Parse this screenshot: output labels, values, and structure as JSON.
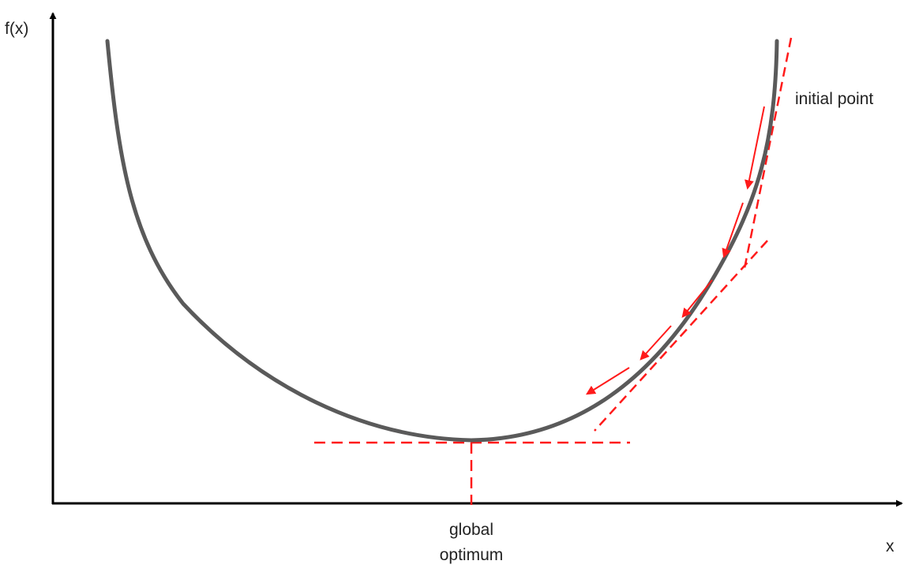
{
  "labels": {
    "y_axis": "f(x)",
    "x_axis": "x",
    "optimum_line1": "global",
    "optimum_line2": "optimum",
    "start": "initial point"
  },
  "colors": {
    "axis": "#000000",
    "curve": "#5a5a5a",
    "accent": "#ff1a1a",
    "text": "#222222"
  },
  "elements": {
    "curve": "convex function curve",
    "tangents": "dashed tangent lines",
    "steps": "gradient descent step arrows"
  }
}
